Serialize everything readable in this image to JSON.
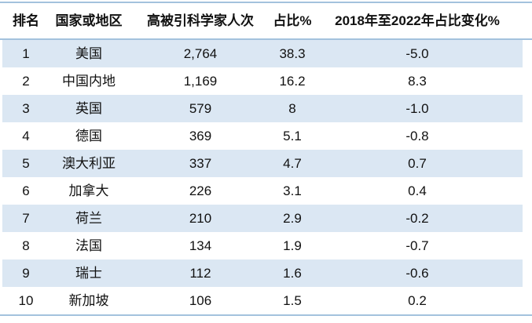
{
  "chart_data": {
    "type": "table",
    "columns": [
      "排名",
      "国家或地区",
      "高被引科学家人次",
      "占比%",
      "2018年至2022年占比变化%"
    ],
    "column_keys": [
      "rank",
      "country",
      "count",
      "share",
      "change"
    ],
    "rows": [
      [
        "1",
        "美国",
        "2,764",
        "38.3",
        "-5.0"
      ],
      [
        "2",
        "中国内地",
        "1,169",
        "16.2",
        "8.3"
      ],
      [
        "3",
        "英国",
        "579",
        "8",
        "-1.0"
      ],
      [
        "4",
        "德国",
        "369",
        "5.1",
        "-0.8"
      ],
      [
        "5",
        "澳大利亚",
        "337",
        "4.7",
        "0.7"
      ],
      [
        "6",
        "加拿大",
        "226",
        "3.1",
        "0.4"
      ],
      [
        "7",
        "荷兰",
        "210",
        "2.9",
        "-0.2"
      ],
      [
        "8",
        "法国",
        "134",
        "1.9",
        "-0.7"
      ],
      [
        "9",
        "瑞士",
        "112",
        "1.6",
        "-0.6"
      ],
      [
        "10",
        "新加坡",
        "106",
        "1.5",
        "0.2"
      ]
    ],
    "layout": {
      "striped": "odd rows light blue",
      "gridlines": "horizontal rules top, below header, bottom"
    }
  },
  "colors": {
    "alt_row_bg": "#dbe7f3",
    "line": "#a3c2dd",
    "text": "#111111"
  }
}
